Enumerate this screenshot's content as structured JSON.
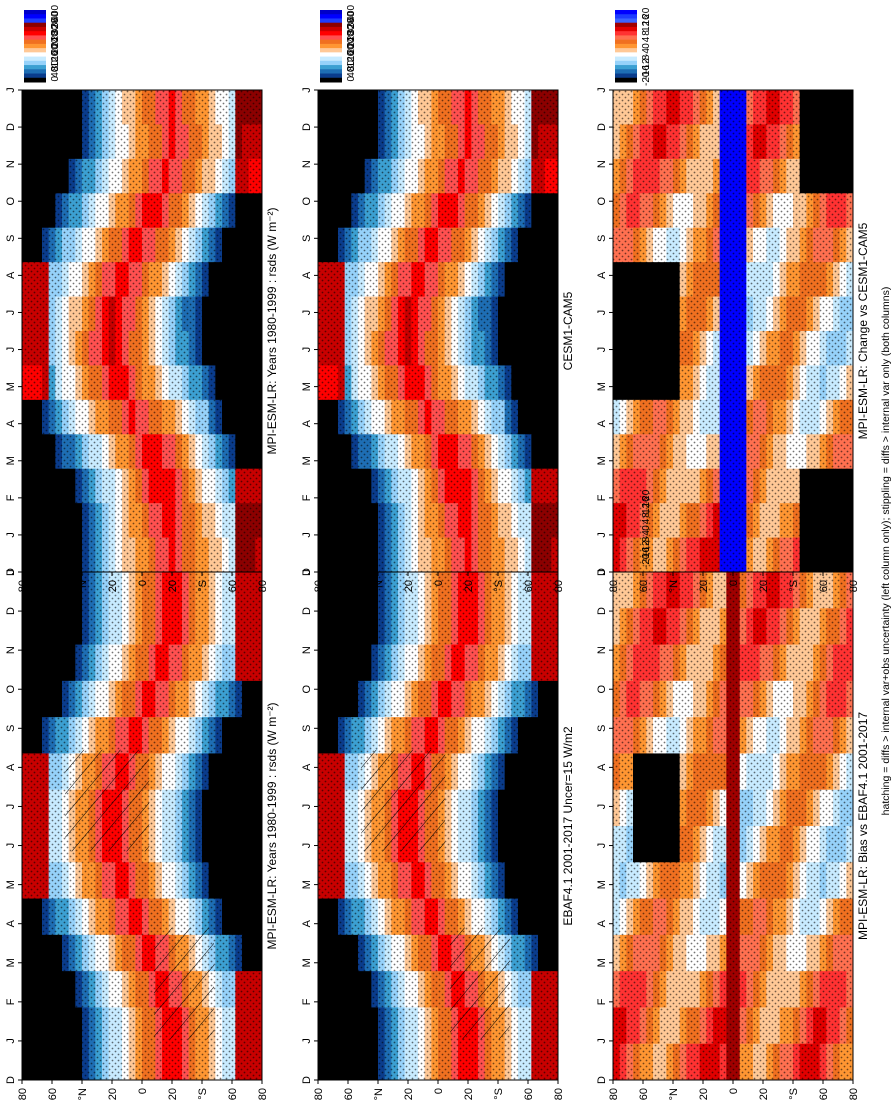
{
  "figure": {
    "footnote": "hatching = diffs > internal var+obs uncertainty (left column only); stippling = diffs > internal var only (both columns)"
  },
  "colors": {
    "abs_scale": [
      "#0000c8",
      "#0000ff",
      "#1e3cff",
      "#8c0000",
      "#c80000",
      "#ff0000",
      "#ff5050",
      "#f07020",
      "#ff9632",
      "#ffc896",
      "#ffffff",
      "#c8ebff",
      "#96d2fa",
      "#3ca0d2",
      "#1e6eb4",
      "#0a3c8c",
      "#000000"
    ],
    "diff_scale": [
      "#0000ff",
      "#1e3cff",
      "#3c64ff",
      "#a00000",
      "#e10000",
      "#ff3232",
      "#ff7050",
      "#f07020",
      "#ff9632",
      "#ffc896",
      "#ffffff",
      "#c8ebff",
      "#96d2fa",
      "#3ca0d2",
      "#1e6eb4",
      "#0a3c8c",
      "#000000"
    ]
  },
  "chart_data": [
    {
      "type": "heatmap",
      "title": "MPI-ESM-LR: Years 1980-1999 : rsds (W m⁻²)",
      "x": [
        "D",
        "J",
        "F",
        "M",
        "A",
        "M",
        "J",
        "J",
        "A",
        "S",
        "O",
        "N",
        "D",
        "J"
      ],
      "y": [
        "80",
        "60",
        "°N",
        "20",
        "0",
        "20",
        "°S",
        "60",
        "80"
      ],
      "colorbar": {
        "ticks": [
          "400",
          "360",
          "320",
          "280",
          "240",
          "200",
          "160",
          "120",
          "80",
          "40",
          "0"
        ],
        "range": [
          0,
          420
        ]
      },
      "overlay": [
        "hatching",
        "stippling"
      ]
    },
    {
      "type": "heatmap",
      "title": "MPI-ESM-LR: Years 1980-1999 : rsds (W m⁻²)",
      "x": [
        "D",
        "J",
        "F",
        "M",
        "A",
        "M",
        "J",
        "J",
        "A",
        "S",
        "O",
        "N",
        "D",
        "J"
      ],
      "y": [
        "80",
        "60",
        "°N",
        "20",
        "0",
        "20",
        "°S",
        "60",
        "80"
      ],
      "colorbar": {
        "ticks": [
          "400",
          "360",
          "320",
          "280",
          "240",
          "200",
          "160",
          "120",
          "80",
          "40",
          "0"
        ],
        "range": [
          0,
          420
        ]
      },
      "overlay": [
        "stippling"
      ]
    },
    {
      "type": "heatmap",
      "title": "EBAF4.1 2001-2017 Uncer=15 W/m2",
      "x": [
        "D",
        "J",
        "F",
        "M",
        "A",
        "M",
        "J",
        "J",
        "A",
        "S",
        "O",
        "N",
        "D",
        "J"
      ],
      "y": [
        "80",
        "60",
        "°N",
        "20",
        "0",
        "20",
        "°S",
        "60",
        "80"
      ],
      "colorbar": {
        "ticks": [
          "400",
          "360",
          "320",
          "280",
          "240",
          "200",
          "160",
          "120",
          "80",
          "40",
          "0"
        ],
        "range": [
          0,
          420
        ]
      },
      "overlay": [
        "hatching",
        "stippling"
      ]
    },
    {
      "type": "heatmap",
      "title": "CESM1-CAM5",
      "x": [
        "D",
        "J",
        "F",
        "M",
        "A",
        "M",
        "J",
        "J",
        "A",
        "S",
        "O",
        "N",
        "D",
        "J"
      ],
      "y": [
        "80",
        "60",
        "°N",
        "20",
        "0",
        "20",
        "°S",
        "60",
        "80"
      ],
      "colorbar": {
        "ticks": [
          "400",
          "360",
          "320",
          "280",
          "240",
          "200",
          "160",
          "120",
          "80",
          "40",
          "0"
        ],
        "range": [
          0,
          420
        ]
      },
      "overlay": [
        "stippling"
      ]
    },
    {
      "type": "heatmap",
      "title": "MPI-ESM-LR: Bias vs EBAF4.1 2001-2017",
      "x": [
        "D",
        "J",
        "F",
        "M",
        "A",
        "M",
        "J",
        "J",
        "A",
        "S",
        "O",
        "N",
        "D",
        "J"
      ],
      "y": [
        "80",
        "60",
        "°N",
        "20",
        "0",
        "20",
        "°S",
        "60",
        "80"
      ],
      "colorbar": {
        "ticks": [
          "20",
          "16",
          "12",
          "8",
          "4",
          "0",
          "-4",
          "-8",
          "-12",
          "-16",
          "-20"
        ],
        "range": [
          -22,
          22
        ]
      },
      "overlay": [
        "stippling"
      ]
    },
    {
      "type": "heatmap",
      "title": "MPI-ESM-LR: Change vs CESM1-CAM5",
      "x": [
        "D",
        "J",
        "F",
        "M",
        "A",
        "M",
        "J",
        "J",
        "A",
        "S",
        "O",
        "N",
        "D",
        "J"
      ],
      "y": [
        "80",
        "60",
        "°N",
        "20",
        "0",
        "20",
        "°S",
        "60",
        "80"
      ],
      "colorbar": {
        "ticks": [
          "20",
          "16",
          "12",
          "8",
          "4",
          "0",
          "-4",
          "-8",
          "-12",
          "-16",
          "-20"
        ],
        "range": [
          -22,
          22
        ]
      },
      "overlay": [
        "stippling"
      ]
    }
  ]
}
